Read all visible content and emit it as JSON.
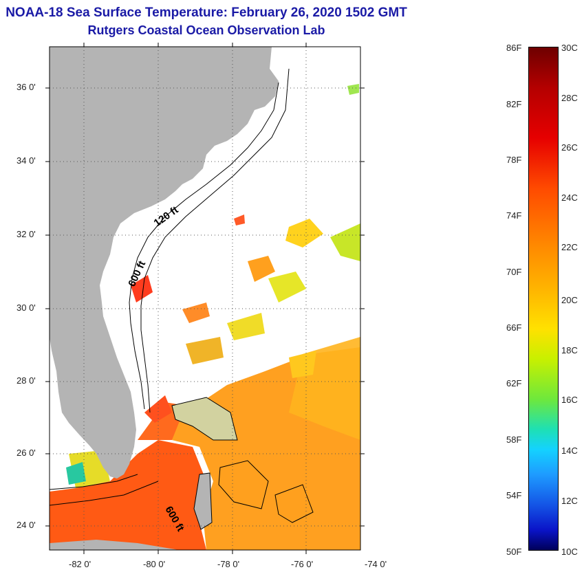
{
  "title": {
    "line1": "NOAA-18 Sea Surface Temperature:  February 26, 2020 1502 GMT",
    "line2": "Rutgers Coastal Ocean Observation Lab"
  },
  "map": {
    "lat_labels": [
      "36 0'",
      "34 0'",
      "32 0'",
      "30 0'",
      "28 0'",
      "26 0'",
      "24 0'"
    ],
    "lon_labels": [
      "-82 0'",
      "-80 0'",
      "-78 0'",
      "-76 0'",
      "-74 0'"
    ],
    "contour_labels": [
      "120 ft",
      "600 ft",
      "600 ft"
    ],
    "lon_range": [
      -83,
      -74.5
    ],
    "lat_range": [
      23,
      37
    ],
    "colors": {
      "land": "#b4b4b4",
      "warm_water": "#ff8c1e",
      "gulf_stream": "#ff5a14",
      "no_data": "#ffffff"
    }
  },
  "colorbar": {
    "fahrenheit_labels": [
      "86F",
      "82F",
      "78F",
      "74F",
      "70F",
      "66F",
      "62F",
      "58F",
      "54F",
      "50F"
    ],
    "celsius_labels": [
      "30C",
      "28C",
      "26C",
      "24C",
      "22C",
      "20C",
      "18C",
      "16C",
      "14C",
      "12C",
      "10C"
    ]
  }
}
